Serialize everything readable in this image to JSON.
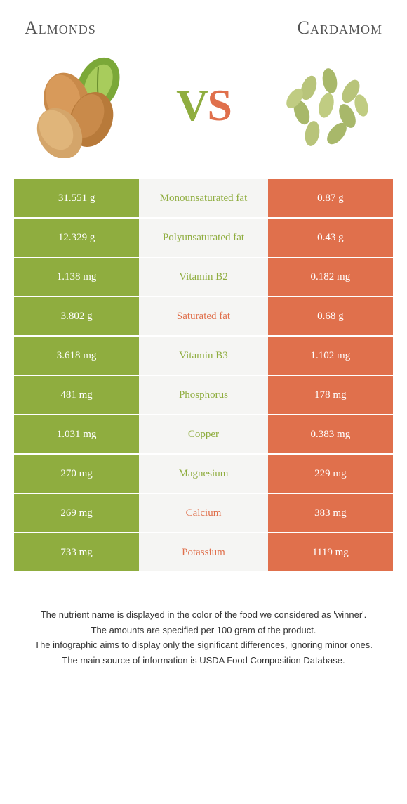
{
  "left_title": "Almonds",
  "right_title": "Cardamom",
  "vs_v": "V",
  "vs_s": "S",
  "colors": {
    "green": "#8fad3f",
    "orange": "#e0704c",
    "midbg": "#f5f5f3"
  },
  "rows": [
    {
      "left": "31.551 g",
      "name": "Monounsaturated fat",
      "right": "0.87 g",
      "winner": "green"
    },
    {
      "left": "12.329 g",
      "name": "Polyunsaturated fat",
      "right": "0.43 g",
      "winner": "green"
    },
    {
      "left": "1.138 mg",
      "name": "Vitamin B2",
      "right": "0.182 mg",
      "winner": "green"
    },
    {
      "left": "3.802 g",
      "name": "Saturated fat",
      "right": "0.68 g",
      "winner": "orange"
    },
    {
      "left": "3.618 mg",
      "name": "Vitamin B3",
      "right": "1.102 mg",
      "winner": "green"
    },
    {
      "left": "481 mg",
      "name": "Phosphorus",
      "right": "178 mg",
      "winner": "green"
    },
    {
      "left": "1.031 mg",
      "name": "Copper",
      "right": "0.383 mg",
      "winner": "green"
    },
    {
      "left": "270 mg",
      "name": "Magnesium",
      "right": "229 mg",
      "winner": "green"
    },
    {
      "left": "269 mg",
      "name": "Calcium",
      "right": "383 mg",
      "winner": "orange"
    },
    {
      "left": "733 mg",
      "name": "Potassium",
      "right": "1119 mg",
      "winner": "orange"
    }
  ],
  "footer": [
    "The nutrient name is displayed in the color of the food we considered as 'winner'.",
    "The amounts are specified per 100 gram of the product.",
    "The infographic aims to display only the significant differences, ignoring minor ones.",
    "The main source of information is USDA Food Composition Database."
  ]
}
